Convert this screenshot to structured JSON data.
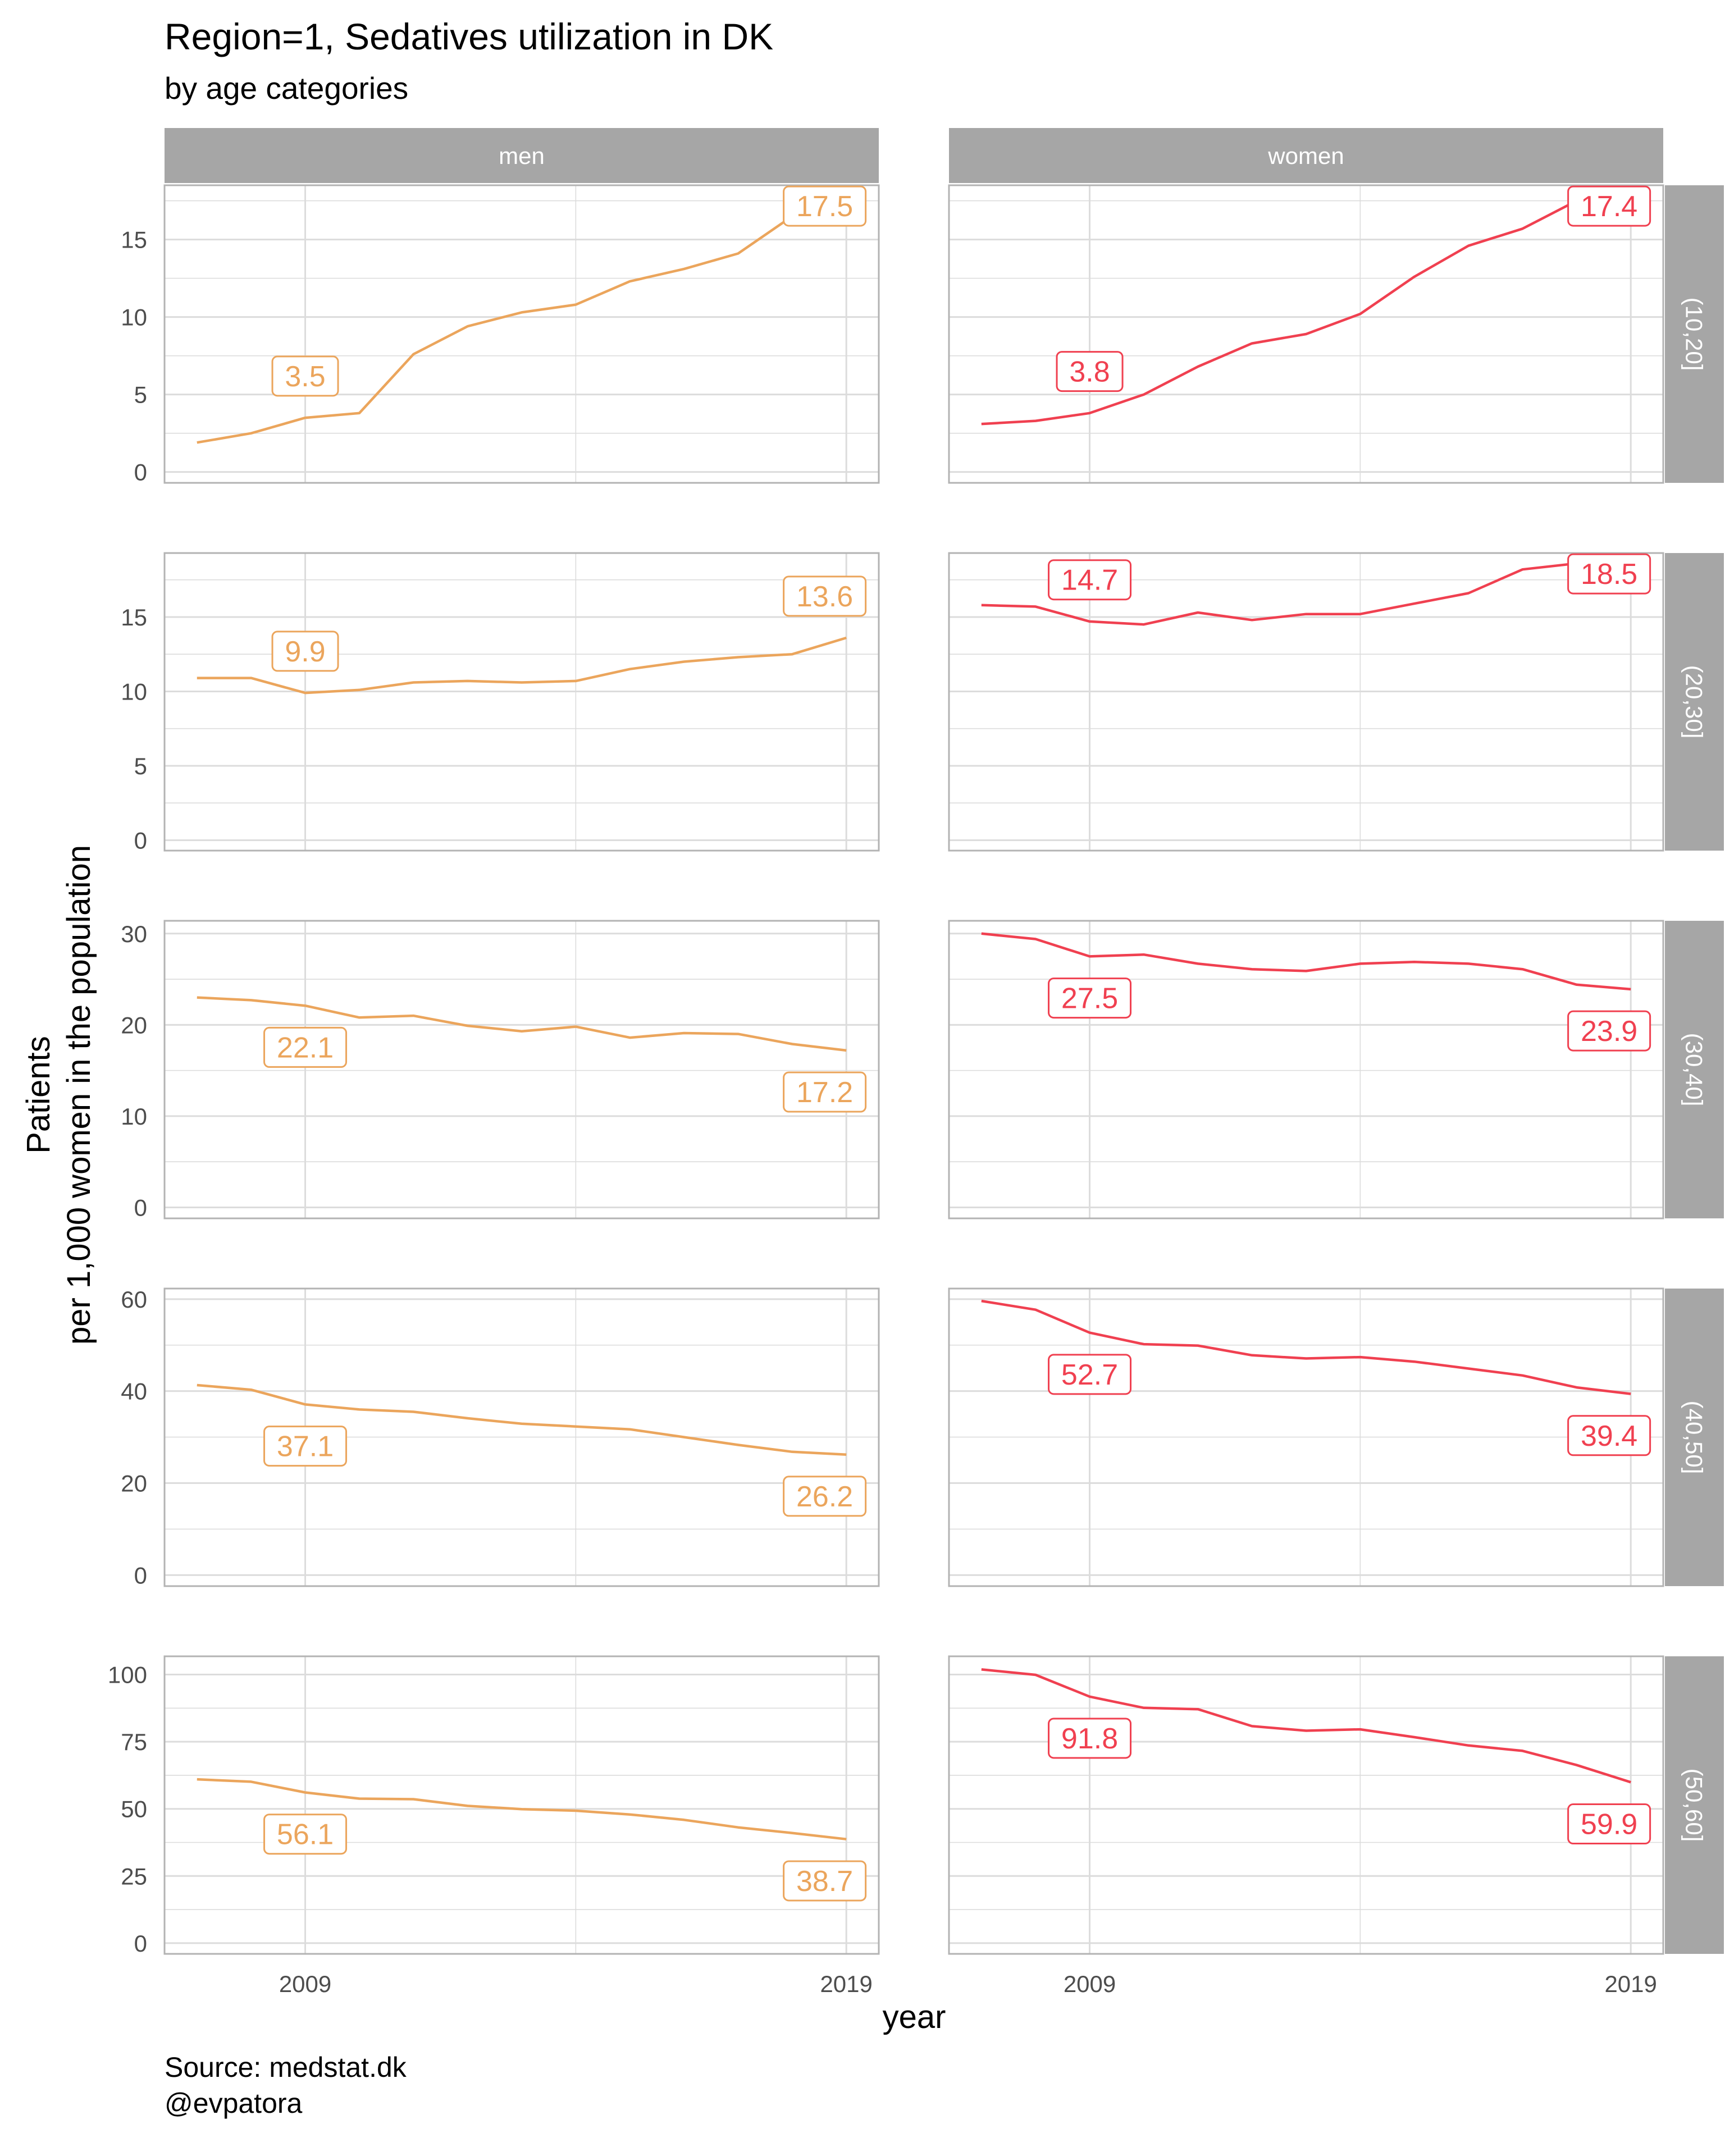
{
  "header": {
    "title": "Region=1, Sedatives utilization in DK",
    "subtitle": "by age categories"
  },
  "footer": {
    "source": "Source: medstat.dk",
    "author": "@evpatora"
  },
  "colors": {
    "men": "#EBA55C",
    "women": "#F04050",
    "strip": "#A6A6A6",
    "grid": "#DCDCDC",
    "panel_border": "#B3B3B3"
  },
  "chart_data": {
    "type": "line",
    "facets": true,
    "xlabel": "year",
    "ylabel": "Patients\nper 1,000 women in the population",
    "x": [
      2007,
      2008,
      2009,
      2010,
      2011,
      2012,
      2013,
      2014,
      2015,
      2016,
      2017,
      2018,
      2019
    ],
    "x_ticks": [
      2009,
      2019
    ],
    "xlim": [
      2006.4,
      2019.6
    ],
    "grid": true,
    "legend": "none",
    "columns": [
      "men",
      "women"
    ],
    "rows": [
      {
        "label": "(10,20]",
        "ylim": [
          -0.7,
          18.5
        ],
        "y_ticks": [
          0,
          5,
          10,
          15
        ],
        "men": {
          "values": [
            1.9,
            2.5,
            3.5,
            3.8,
            7.6,
            9.4,
            10.3,
            10.8,
            12.3,
            13.1,
            14.1,
            16.5,
            17.5
          ],
          "labels": [
            {
              "x": 2009,
              "text": "3.5"
            },
            {
              "x": 2019,
              "text": "17.5"
            }
          ]
        },
        "women": {
          "values": [
            3.1,
            3.3,
            3.8,
            5.0,
            6.8,
            8.3,
            8.9,
            10.2,
            12.6,
            14.6,
            15.7,
            17.5,
            17.4
          ],
          "labels": [
            {
              "x": 2009,
              "text": "3.8"
            },
            {
              "x": 2019,
              "text": "17.4"
            }
          ]
        }
      },
      {
        "label": "(20,30]",
        "ylim": [
          -0.7,
          19.3
        ],
        "y_ticks": [
          0,
          5,
          10,
          15
        ],
        "men": {
          "values": [
            10.9,
            10.9,
            9.9,
            10.1,
            10.6,
            10.7,
            10.6,
            10.7,
            11.5,
            12.0,
            12.3,
            12.5,
            13.6
          ],
          "labels": [
            {
              "x": 2009,
              "text": "9.9"
            },
            {
              "x": 2019,
              "text": "13.6"
            }
          ]
        },
        "women": {
          "values": [
            15.8,
            15.7,
            14.7,
            14.5,
            15.3,
            14.8,
            15.2,
            15.2,
            15.9,
            16.6,
            18.2,
            18.6,
            18.5
          ],
          "labels": [
            {
              "x": 2009,
              "text": "14.7"
            },
            {
              "x": 2019,
              "text": "18.5"
            }
          ]
        }
      },
      {
        "label": "(30,40]",
        "ylim": [
          -1.2,
          31.4
        ],
        "y_ticks": [
          0,
          10,
          20,
          30
        ],
        "men": {
          "values": [
            23.0,
            22.7,
            22.1,
            20.8,
            21.0,
            19.9,
            19.3,
            19.8,
            18.6,
            19.1,
            19.0,
            17.9,
            17.2
          ],
          "labels": [
            {
              "x": 2009,
              "text": "22.1"
            },
            {
              "x": 2019,
              "text": "17.2"
            }
          ]
        },
        "women": {
          "values": [
            30.0,
            29.4,
            27.5,
            27.7,
            26.7,
            26.1,
            25.9,
            26.7,
            26.9,
            26.7,
            26.1,
            24.4,
            23.9
          ],
          "labels": [
            {
              "x": 2009,
              "text": "27.5"
            },
            {
              "x": 2019,
              "text": "23.9"
            }
          ]
        }
      },
      {
        "label": "(40,50]",
        "ylim": [
          -2.4,
          62.3
        ],
        "y_ticks": [
          0,
          20,
          40,
          60
        ],
        "men": {
          "values": [
            41.3,
            40.3,
            37.1,
            36.0,
            35.5,
            34.1,
            32.9,
            32.3,
            31.7,
            30.0,
            28.3,
            26.8,
            26.2
          ],
          "labels": [
            {
              "x": 2009,
              "text": "37.1"
            },
            {
              "x": 2019,
              "text": "26.2"
            }
          ]
        },
        "women": {
          "values": [
            59.6,
            57.7,
            52.7,
            50.2,
            49.9,
            47.8,
            47.1,
            47.4,
            46.4,
            44.9,
            43.4,
            40.8,
            39.4
          ],
          "labels": [
            {
              "x": 2009,
              "text": "52.7"
            },
            {
              "x": 2019,
              "text": "39.4"
            }
          ]
        }
      },
      {
        "label": "(50,60]",
        "ylim": [
          -4.0,
          106.8
        ],
        "y_ticks": [
          0,
          25,
          50,
          75,
          100
        ],
        "men": {
          "values": [
            61.0,
            60.1,
            56.1,
            53.8,
            53.6,
            51.1,
            49.9,
            49.3,
            47.9,
            45.9,
            43.1,
            41.0,
            38.7
          ],
          "labels": [
            {
              "x": 2009,
              "text": "56.1"
            },
            {
              "x": 2019,
              "text": "38.7"
            }
          ]
        },
        "women": {
          "values": [
            101.9,
            99.9,
            91.8,
            87.6,
            87.1,
            80.8,
            79.1,
            79.6,
            76.7,
            73.6,
            71.6,
            66.3,
            59.9
          ],
          "labels": [
            {
              "x": 2009,
              "text": "91.8"
            },
            {
              "x": 2019,
              "text": "59.9"
            }
          ]
        }
      }
    ]
  }
}
